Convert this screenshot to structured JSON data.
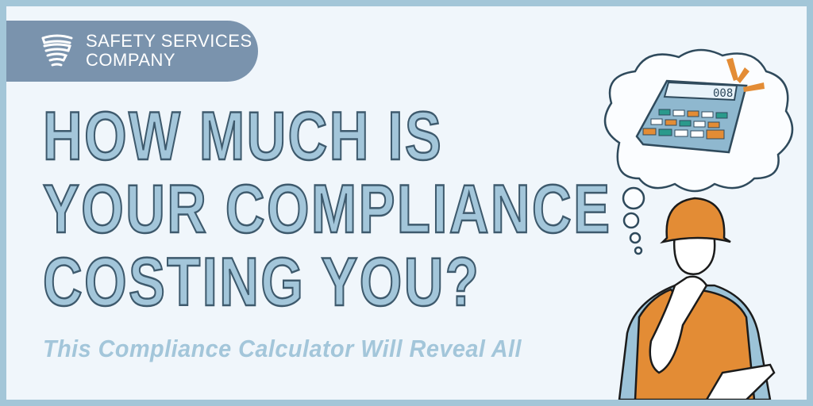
{
  "brand": {
    "line1": "SAFETY SERVICES",
    "line2": "COMPANY",
    "icon": "shield-stripes-icon"
  },
  "headline": {
    "lines": [
      "HOW MUCH IS",
      "YOUR COMPLIANCE",
      "COSTING YOU?"
    ]
  },
  "subtitle": "This Compliance Calculator Will Reveal All",
  "illustration": {
    "calculator_display": "008"
  },
  "colors": {
    "border": "#a3c6d8",
    "background": "#f0f6fb",
    "logo_pill": "#7a93ad",
    "headline_fill": "#a3c6da",
    "headline_outline": "#3e5a6d",
    "accent_orange": "#e38c35",
    "accent_teal": "#2a9a8c"
  }
}
